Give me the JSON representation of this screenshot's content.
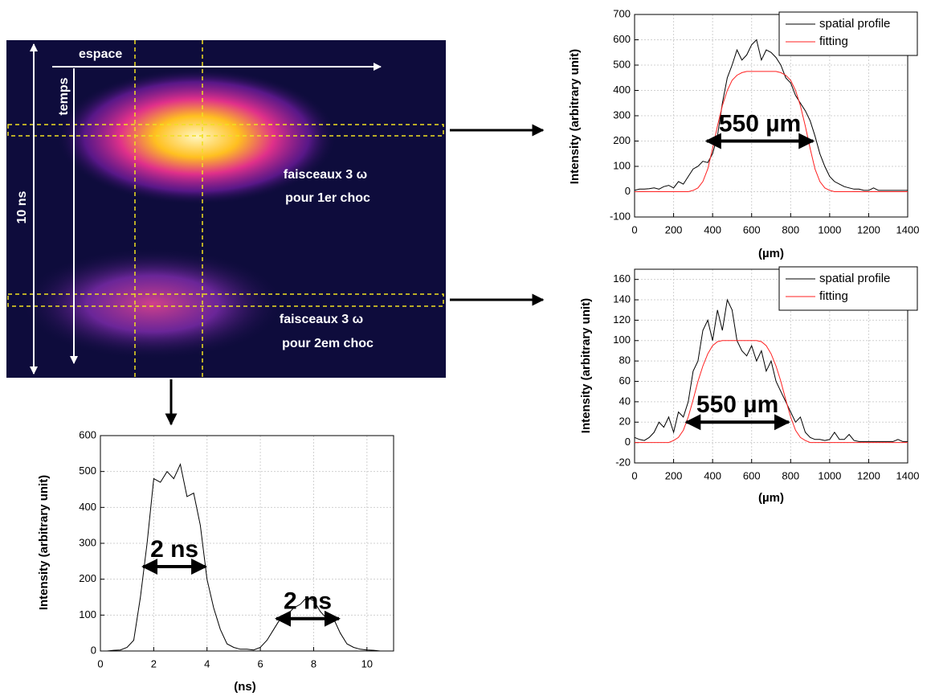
{
  "image": {
    "space_axis": "espace",
    "time_axis": "temps",
    "duration": "10 ns",
    "beam_1": [
      "faisceaux 3 ω",
      "pour 1er choc"
    ],
    "beam_2": [
      "faisceaux 3 ω",
      "pour 2em choc"
    ]
  },
  "chart_data": [
    {
      "type": "line",
      "x_label": "(µm)",
      "y_label": "Intensity (arbitrary unit)",
      "xlim": [
        0,
        1400
      ],
      "ylim": [
        -100,
        700
      ],
      "xticks": [
        0,
        200,
        400,
        600,
        800,
        1000,
        1200,
        1400
      ],
      "yticks": [
        -100,
        0,
        100,
        200,
        300,
        400,
        500,
        600,
        700
      ],
      "grid": true,
      "legend": "upper right",
      "x": [
        0,
        25,
        50,
        75,
        100,
        125,
        150,
        175,
        200,
        225,
        250,
        275,
        300,
        325,
        350,
        375,
        400,
        425,
        450,
        475,
        500,
        525,
        550,
        575,
        600,
        625,
        650,
        675,
        700,
        725,
        750,
        775,
        800,
        825,
        850,
        875,
        900,
        925,
        950,
        975,
        1000,
        1025,
        1050,
        1075,
        1100,
        1125,
        1150,
        1175,
        1200,
        1225,
        1250,
        1275,
        1300,
        1325,
        1350,
        1375,
        1400
      ],
      "series": [
        {
          "name": "spatial profile",
          "color": "#000000",
          "values": [
            5,
            10,
            10,
            12,
            15,
            10,
            20,
            25,
            15,
            40,
            30,
            60,
            90,
            100,
            120,
            115,
            150,
            220,
            350,
            450,
            500,
            560,
            520,
            540,
            580,
            600,
            520,
            560,
            550,
            530,
            500,
            450,
            430,
            380,
            350,
            320,
            280,
            220,
            150,
            100,
            60,
            40,
            30,
            20,
            15,
            10,
            10,
            5,
            5,
            15,
            5,
            5,
            5,
            5,
            5,
            5,
            5
          ]
        },
        {
          "name": "fitting",
          "color": "#ff2020",
          "values": [
            0,
            0,
            0,
            0,
            0,
            0,
            0,
            0,
            0,
            0,
            0,
            0,
            5,
            15,
            40,
            90,
            170,
            260,
            340,
            400,
            440,
            460,
            470,
            475,
            475,
            475,
            475,
            475,
            475,
            475,
            470,
            460,
            440,
            400,
            340,
            260,
            170,
            90,
            40,
            15,
            5,
            0,
            0,
            0,
            0,
            0,
            0,
            0,
            0,
            0,
            0,
            0,
            0,
            0,
            0,
            0,
            0
          ]
        }
      ],
      "annotations": [
        {
          "text": "550 µm",
          "x": [
            370,
            915
          ],
          "y": 200
        }
      ]
    },
    {
      "type": "line",
      "x_label": "(µm)",
      "y_label": "Intensity (arbitrary unit)",
      "xlim": [
        0,
        1400
      ],
      "ylim": [
        -20,
        170
      ],
      "xticks": [
        0,
        200,
        400,
        600,
        800,
        1000,
        1200,
        1400
      ],
      "yticks": [
        -20,
        0,
        20,
        40,
        60,
        80,
        100,
        120,
        140,
        160
      ],
      "grid": true,
      "legend": "upper right",
      "x": [
        0,
        25,
        50,
        75,
        100,
        125,
        150,
        175,
        200,
        225,
        250,
        275,
        300,
        325,
        350,
        375,
        400,
        425,
        450,
        475,
        500,
        525,
        550,
        575,
        600,
        625,
        650,
        675,
        700,
        725,
        750,
        775,
        800,
        825,
        850,
        875,
        900,
        925,
        950,
        975,
        1000,
        1025,
        1050,
        1075,
        1100,
        1125,
        1150,
        1175,
        1200,
        1225,
        1250,
        1275,
        1300,
        1325,
        1350,
        1375,
        1400
      ],
      "series": [
        {
          "name": "spatial profile",
          "color": "#000000",
          "values": [
            5,
            3,
            2,
            5,
            10,
            20,
            15,
            25,
            10,
            30,
            25,
            40,
            70,
            80,
            110,
            120,
            100,
            130,
            110,
            140,
            130,
            100,
            90,
            85,
            95,
            80,
            90,
            70,
            80,
            60,
            50,
            40,
            30,
            20,
            25,
            10,
            5,
            3,
            3,
            2,
            3,
            10,
            3,
            3,
            8,
            2,
            1,
            1,
            1,
            1,
            1,
            1,
            1,
            1,
            3,
            1,
            1
          ]
        },
        {
          "name": "fitting",
          "color": "#ff2020",
          "values": [
            0,
            0,
            0,
            0,
            0,
            0,
            0,
            0,
            2,
            5,
            12,
            25,
            42,
            60,
            75,
            87,
            95,
            99,
            100,
            100,
            100,
            100,
            100,
            100,
            100,
            100,
            99,
            95,
            87,
            75,
            60,
            42,
            25,
            12,
            5,
            2,
            0,
            0,
            0,
            0,
            0,
            0,
            0,
            0,
            0,
            0,
            0,
            0,
            0,
            0,
            0,
            0,
            0,
            0,
            0,
            0,
            0
          ]
        }
      ],
      "annotations": [
        {
          "text": "550 µm",
          "x": [
            265,
            790
          ],
          "y": 20
        }
      ]
    },
    {
      "type": "line",
      "x_label": "(ns)",
      "y_label": "Intensity (arbitrary unit)",
      "xlim": [
        0,
        11
      ],
      "ylim": [
        0,
        600
      ],
      "xticks": [
        0,
        2,
        4,
        6,
        8,
        10
      ],
      "yticks": [
        0,
        100,
        200,
        300,
        400,
        500,
        600
      ],
      "grid": true,
      "color": "#000000",
      "x": [
        0,
        0.25,
        0.5,
        0.75,
        1,
        1.25,
        1.5,
        1.75,
        2,
        2.25,
        2.5,
        2.75,
        3,
        3.25,
        3.5,
        3.75,
        4,
        4.25,
        4.5,
        4.75,
        5,
        5.25,
        5.5,
        5.75,
        6,
        6.25,
        6.5,
        6.75,
        7,
        7.25,
        7.5,
        7.75,
        8,
        8.25,
        8.5,
        8.75,
        9,
        9.25,
        9.5,
        9.75,
        10,
        10.25,
        10.5,
        10.75,
        11
      ],
      "values": [
        0,
        0,
        2,
        3,
        10,
        30,
        150,
        300,
        480,
        470,
        500,
        480,
        520,
        430,
        440,
        350,
        200,
        120,
        60,
        20,
        10,
        5,
        5,
        3,
        10,
        30,
        60,
        90,
        100,
        120,
        130,
        150,
        140,
        110,
        90,
        90,
        50,
        20,
        10,
        5,
        3,
        2,
        0,
        0,
        0
      ],
      "annotations": [
        {
          "text": "2 ns",
          "x": [
            1.6,
            3.95
          ],
          "y": 235
        },
        {
          "text": "2 ns",
          "x": [
            6.6,
            8.95
          ],
          "y": 90
        }
      ]
    }
  ]
}
